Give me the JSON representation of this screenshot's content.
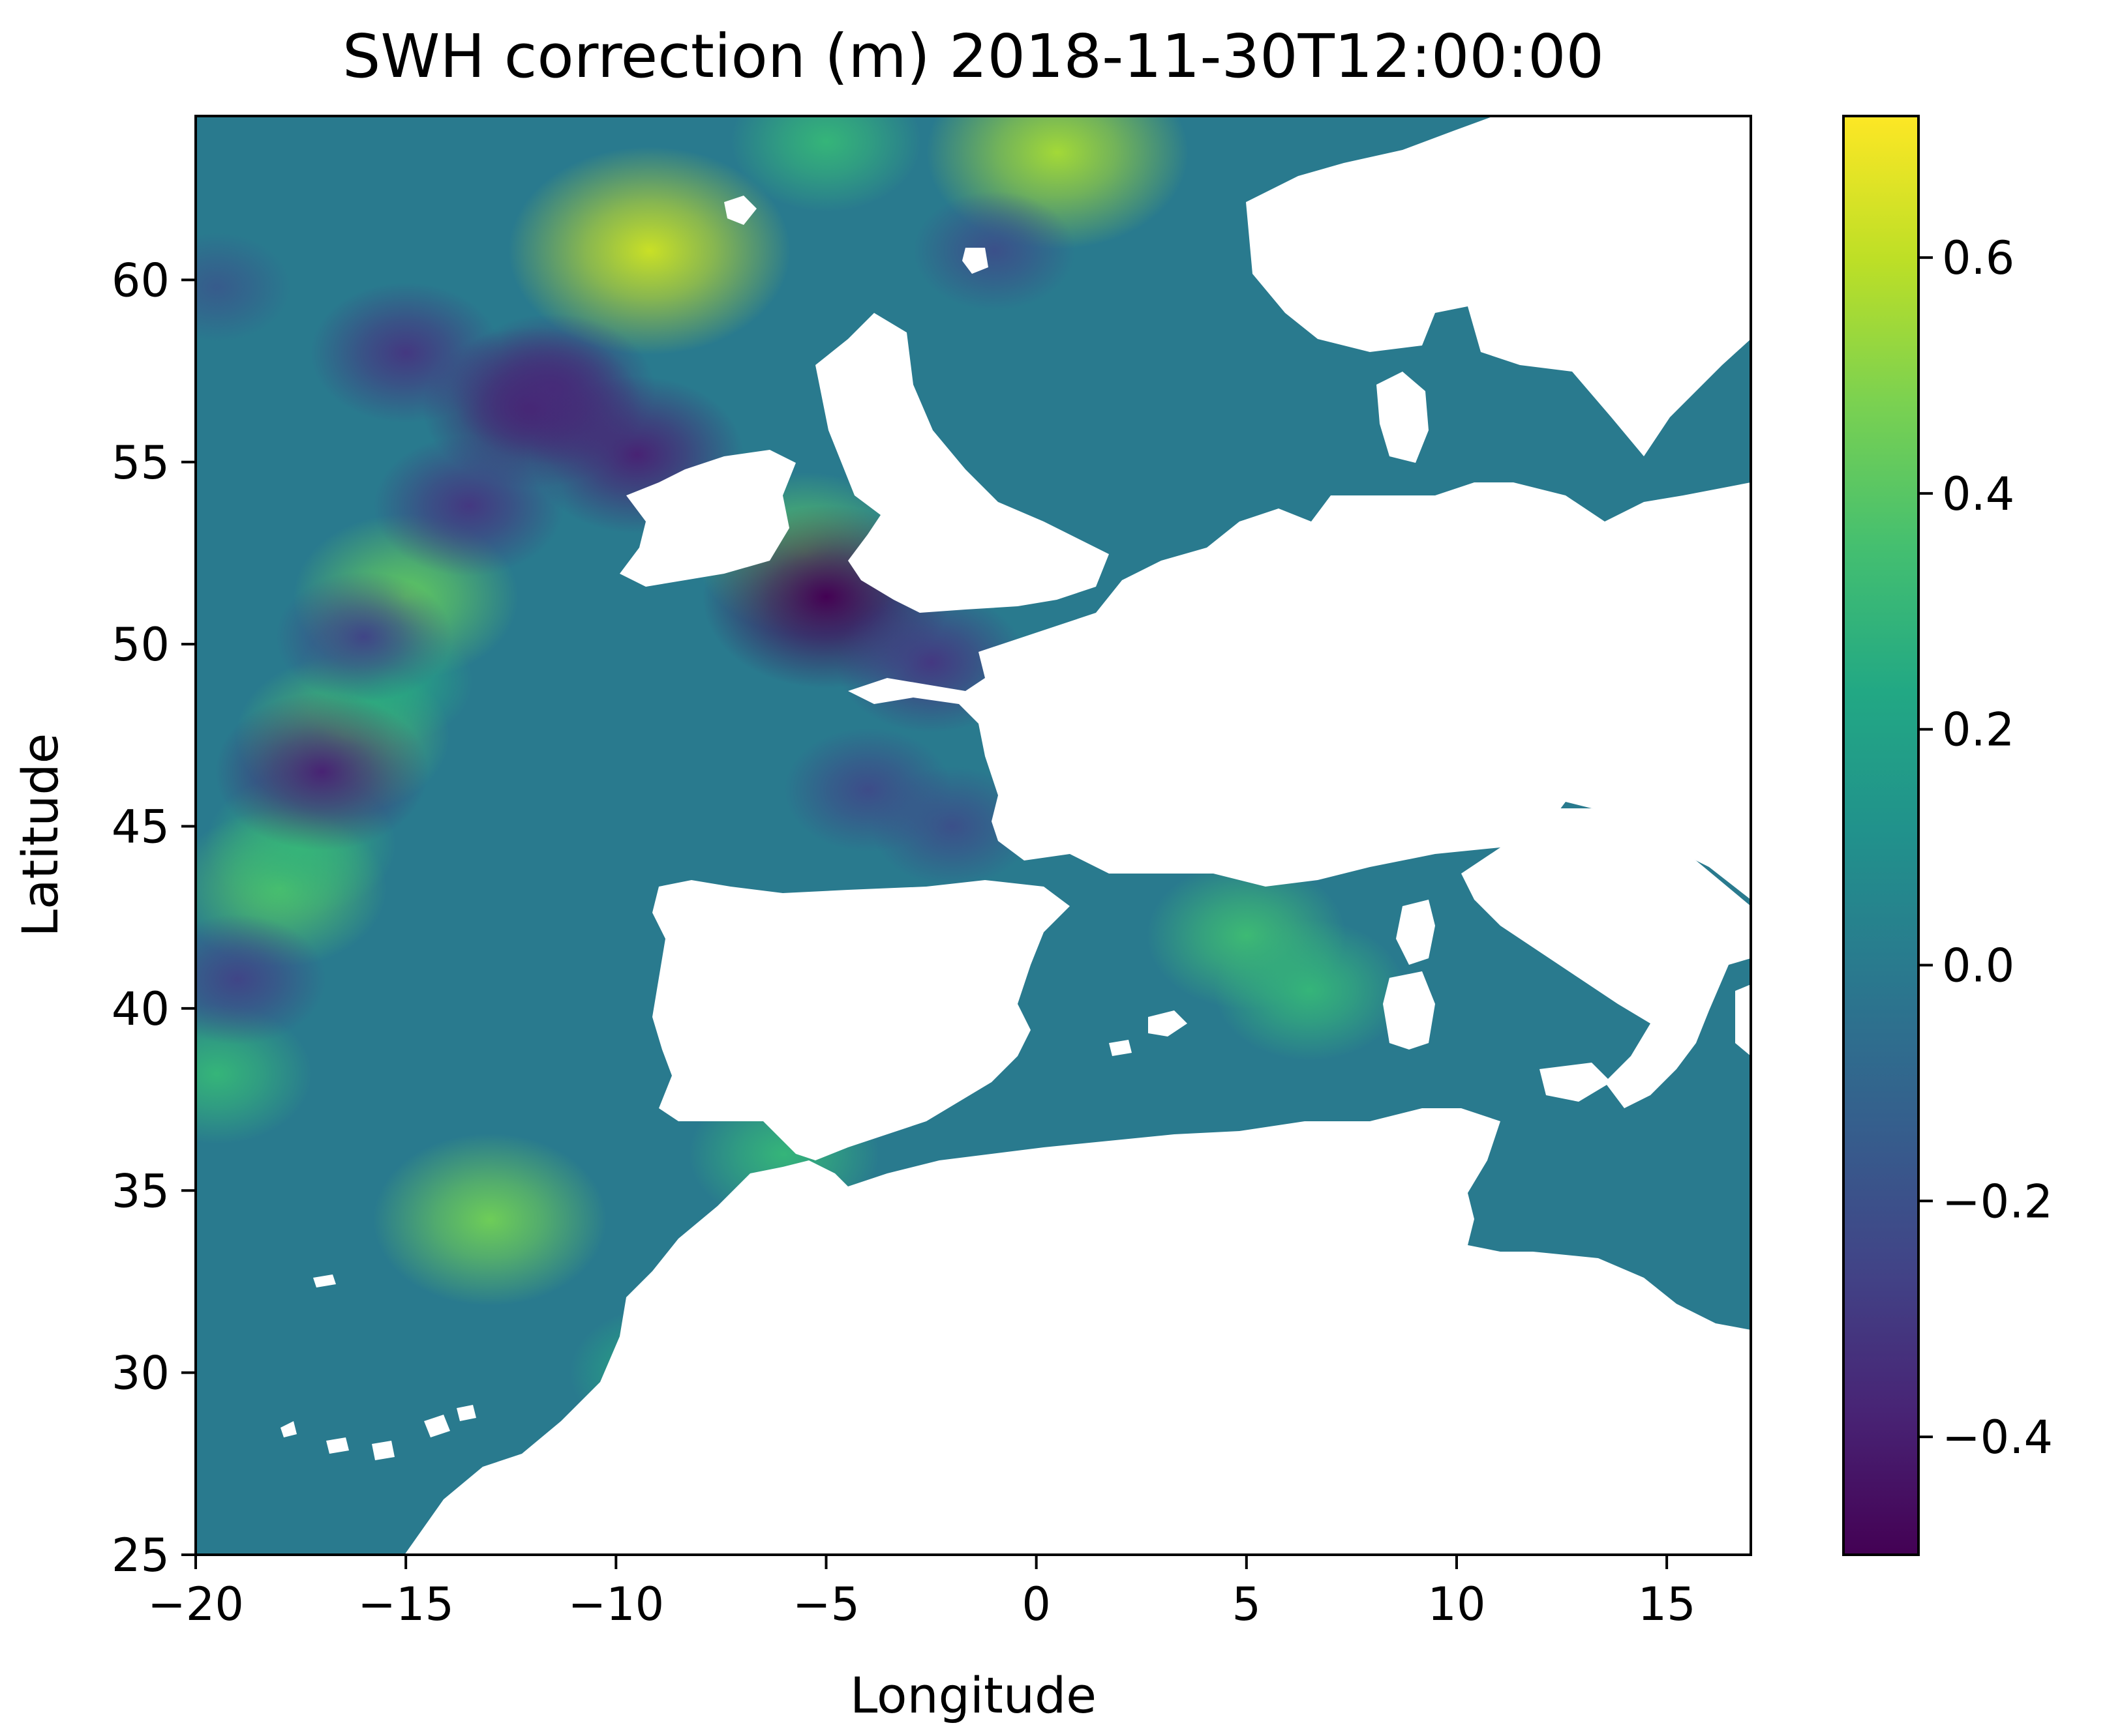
{
  "chart_data": {
    "type": "heatmap",
    "title": "SWH correction (m) 2018-11-30T12:00:00",
    "xlabel": "Longitude",
    "ylabel": "Latitude",
    "xlim": [
      -20,
      17
    ],
    "ylim": [
      25,
      64.5
    ],
    "x_ticks": [
      -20,
      -15,
      -10,
      -5,
      0,
      5,
      10,
      15
    ],
    "x_tick_labels": [
      "−20",
      "−15",
      "−10",
      "−5",
      "0",
      "5",
      "10",
      "15"
    ],
    "y_ticks": [
      25,
      30,
      35,
      40,
      45,
      50,
      55,
      60
    ],
    "y_tick_labels": [
      "25",
      "30",
      "35",
      "40",
      "45",
      "50",
      "55",
      "60"
    ],
    "colormap": "viridis",
    "colorbar": {
      "vmin": -0.5,
      "vmax": 0.72,
      "ticks": [
        -0.4,
        -0.2,
        0.0,
        0.2,
        0.4,
        0.6
      ],
      "tick_labels": [
        "−0.4",
        "−0.2",
        "0.0",
        "0.2",
        "0.4",
        "0.6"
      ]
    },
    "background_value": 0.0,
    "hotspots": [
      {
        "lon": -9.2,
        "lat": 60.8,
        "value": 0.62
      },
      {
        "lon": 0.5,
        "lat": 63.5,
        "value": 0.55
      },
      {
        "lon": -5.0,
        "lat": 63.8,
        "value": 0.3
      },
      {
        "lon": -13.0,
        "lat": 34.2,
        "value": 0.45
      },
      {
        "lon": -15.0,
        "lat": 51.3,
        "value": 0.42
      },
      {
        "lon": -16.5,
        "lat": 47.5,
        "value": 0.38
      },
      {
        "lon": -18.0,
        "lat": 43.3,
        "value": 0.38
      },
      {
        "lon": -17.5,
        "lat": 44.5,
        "value": 0.3
      },
      {
        "lon": -19.5,
        "lat": 38.2,
        "value": 0.3
      },
      {
        "lon": -15.5,
        "lat": 49.0,
        "value": 0.25
      },
      {
        "lon": 5.0,
        "lat": 42.0,
        "value": 0.33
      },
      {
        "lon": 6.5,
        "lat": 40.5,
        "value": 0.3
      },
      {
        "lon": -5.5,
        "lat": 52.5,
        "value": 0.4
      },
      {
        "lon": -6.0,
        "lat": 36.0,
        "value": 0.3
      },
      {
        "lon": -9.0,
        "lat": 30.0,
        "value": 0.25
      },
      {
        "lon": -12.0,
        "lat": 56.5,
        "value": -0.4
      },
      {
        "lon": -11.5,
        "lat": 57.0,
        "value": -0.35
      },
      {
        "lon": -15.0,
        "lat": 58.0,
        "value": -0.3
      },
      {
        "lon": -9.5,
        "lat": 55.2,
        "value": -0.38
      },
      {
        "lon": -13.5,
        "lat": 53.8,
        "value": -0.3
      },
      {
        "lon": -16.0,
        "lat": 50.2,
        "value": -0.25
      },
      {
        "lon": -17.0,
        "lat": 46.5,
        "value": -0.38
      },
      {
        "lon": -19.0,
        "lat": 40.8,
        "value": -0.25
      },
      {
        "lon": -19.5,
        "lat": 59.8,
        "value": -0.15
      },
      {
        "lon": -5.0,
        "lat": 51.3,
        "value": -0.5
      },
      {
        "lon": -2.5,
        "lat": 49.5,
        "value": -0.3
      },
      {
        "lon": -4.0,
        "lat": 46.0,
        "value": -0.22
      },
      {
        "lon": -2.0,
        "lat": 45.0,
        "value": -0.2
      },
      {
        "lon": -1.0,
        "lat": 60.8,
        "value": -0.2
      }
    ]
  }
}
